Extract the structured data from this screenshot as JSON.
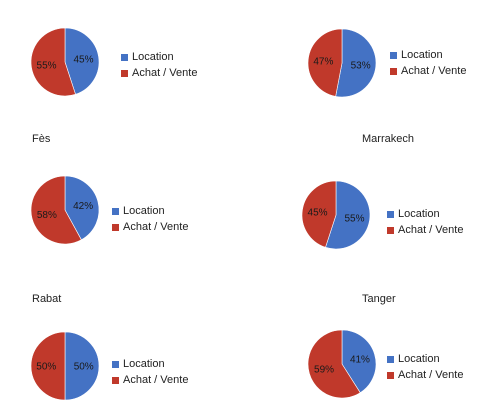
{
  "colors": {
    "location": "#4472C4",
    "achat_vente": "#C0392B"
  },
  "chart_data": [
    {
      "type": "pie",
      "title": "",
      "labels": [
        "Location",
        "Achat / Vente"
      ],
      "values": [
        45,
        55
      ],
      "value_labels": [
        "45%",
        "55%"
      ],
      "legend": [
        "Location",
        "Achat / Vente"
      ]
    },
    {
      "type": "pie",
      "title": "",
      "labels": [
        "Location",
        "Achat / Vente"
      ],
      "values": [
        53,
        47
      ],
      "value_labels": [
        "53%",
        "47%"
      ],
      "legend": [
        "Location",
        "Achat / Vente"
      ]
    },
    {
      "type": "pie",
      "title": "Fès",
      "labels": [
        "Location",
        "Achat / Vente"
      ],
      "values": [
        42,
        58
      ],
      "value_labels": [
        "42%",
        "58%"
      ],
      "legend": [
        "Location",
        "Achat / Vente"
      ]
    },
    {
      "type": "pie",
      "title": "Marrakech",
      "labels": [
        "Location",
        "Achat / Vente"
      ],
      "values": [
        55,
        45
      ],
      "value_labels": [
        "55%",
        "45%"
      ],
      "legend": [
        "Location",
        "Achat / Vente"
      ]
    },
    {
      "type": "pie",
      "title": "Rabat",
      "labels": [
        "Location",
        "Achat / Vente"
      ],
      "values": [
        50,
        50
      ],
      "value_labels": [
        "50%",
        "50%"
      ],
      "legend": [
        "Location",
        "Achat / Vente"
      ]
    },
    {
      "type": "pie",
      "title": "Tanger",
      "labels": [
        "Location",
        "Achat / Vente"
      ],
      "values": [
        41,
        59
      ],
      "value_labels": [
        "41%",
        "59%"
      ],
      "legend": [
        "Location",
        "Achat / Vente"
      ]
    }
  ]
}
